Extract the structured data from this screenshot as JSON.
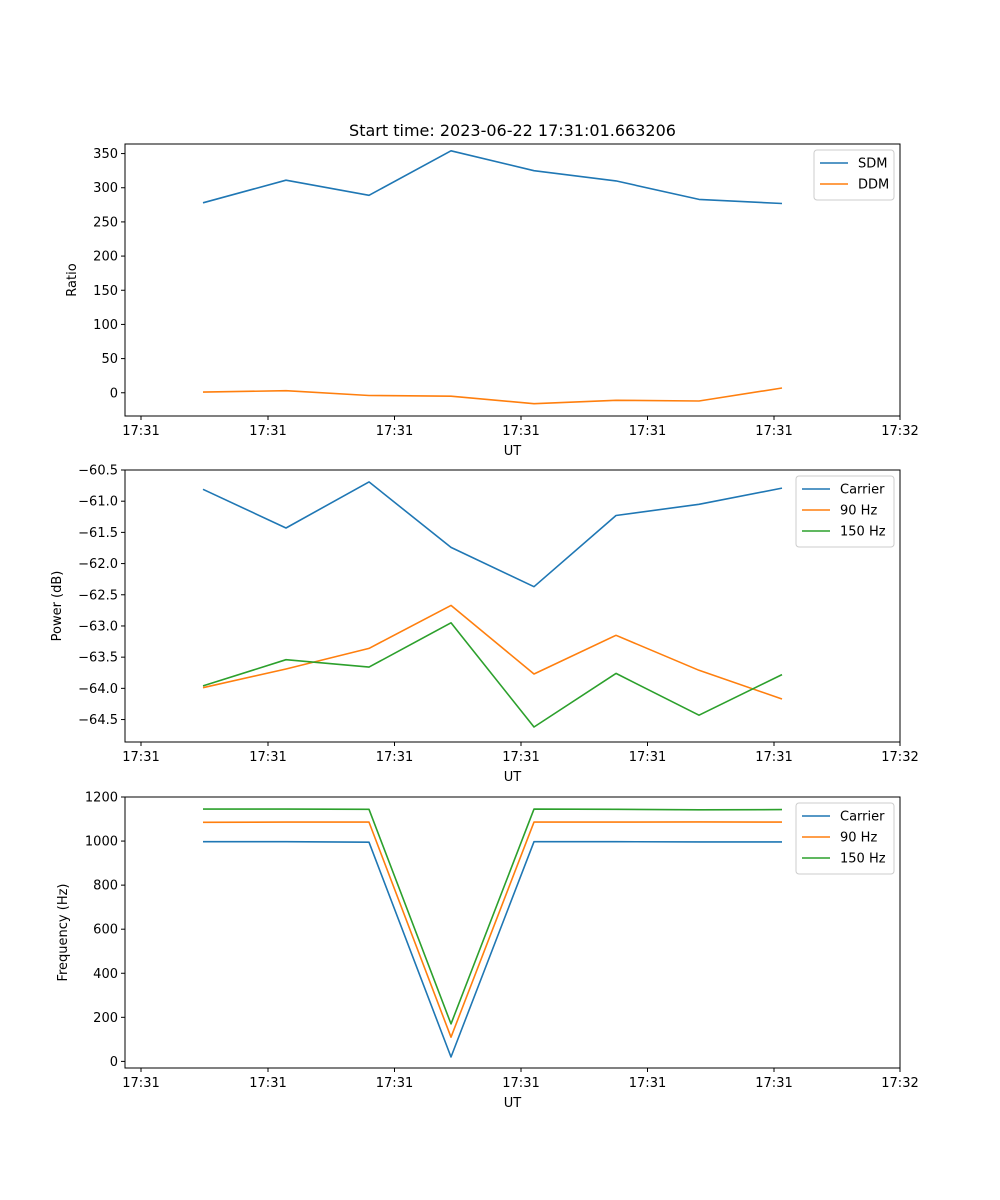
{
  "title": "Start time: 2023-06-22 17:31:01.663206",
  "colors": {
    "blue": "#1f77b4",
    "orange": "#ff7f0e",
    "green": "#2ca02c"
  },
  "chart_data": [
    {
      "type": "line",
      "title": "Start time: 2023-06-22 17:31:01.663206",
      "xlabel": "UT",
      "ylabel": "Ratio",
      "x_tick_labels": [
        "17:31",
        "17:31",
        "17:31",
        "17:31",
        "17:31",
        "17:31",
        "17:32"
      ],
      "y_ticks": [
        0,
        50,
        100,
        150,
        200,
        250,
        300,
        350
      ],
      "ylim": [
        -34,
        364
      ],
      "legend": "top-right",
      "series": [
        {
          "name": "SDM",
          "color": "#1f77b4",
          "values": [
            278,
            311,
            289,
            354,
            325,
            310,
            283,
            277
          ]
        },
        {
          "name": "DDM",
          "color": "#ff7f0e",
          "values": [
            1,
            3,
            -4,
            -5,
            -16,
            -11,
            -12,
            7
          ]
        }
      ]
    },
    {
      "type": "line",
      "xlabel": "UT",
      "ylabel": "Power (dB)",
      "x_tick_labels": [
        "17:31",
        "17:31",
        "17:31",
        "17:31",
        "17:31",
        "17:31",
        "17:32"
      ],
      "y_ticks": [
        -64.5,
        -64.0,
        -63.5,
        -63.0,
        -62.5,
        -62.0,
        -61.5,
        -61.0,
        -60.5
      ],
      "ylim": [
        -64.86,
        -60.5
      ],
      "legend": "top-right",
      "series": [
        {
          "name": "Carrier",
          "color": "#1f77b4",
          "values": [
            -60.81,
            -61.43,
            -60.69,
            -61.74,
            -62.37,
            -61.23,
            -61.05,
            -60.79
          ]
        },
        {
          "name": "90 Hz",
          "color": "#ff7f0e",
          "values": [
            -63.99,
            -63.69,
            -63.36,
            -62.67,
            -63.77,
            -63.15,
            -63.71,
            -64.17
          ]
        },
        {
          "name": "150 Hz",
          "color": "#2ca02c",
          "values": [
            -63.96,
            -63.54,
            -63.66,
            -62.95,
            -64.62,
            -63.76,
            -64.43,
            -63.78
          ]
        }
      ]
    },
    {
      "type": "line",
      "xlabel": "UT",
      "ylabel": "Frequency (Hz)",
      "x_tick_labels": [
        "17:31",
        "17:31",
        "17:31",
        "17:31",
        "17:31",
        "17:31",
        "17:32"
      ],
      "y_ticks": [
        0,
        200,
        400,
        600,
        800,
        1000,
        1200
      ],
      "ylim": [
        -30,
        1200
      ],
      "legend": "top-right",
      "series": [
        {
          "name": "Carrier",
          "color": "#1f77b4",
          "values": [
            997,
            997,
            995,
            20,
            997,
            997,
            996,
            996
          ]
        },
        {
          "name": "90 Hz",
          "color": "#ff7f0e",
          "values": [
            1085,
            1086,
            1086,
            110,
            1086,
            1086,
            1087,
            1086
          ]
        },
        {
          "name": "150 Hz",
          "color": "#2ca02c",
          "values": [
            1145,
            1145,
            1144,
            170,
            1145,
            1144,
            1142,
            1143
          ]
        }
      ]
    }
  ]
}
